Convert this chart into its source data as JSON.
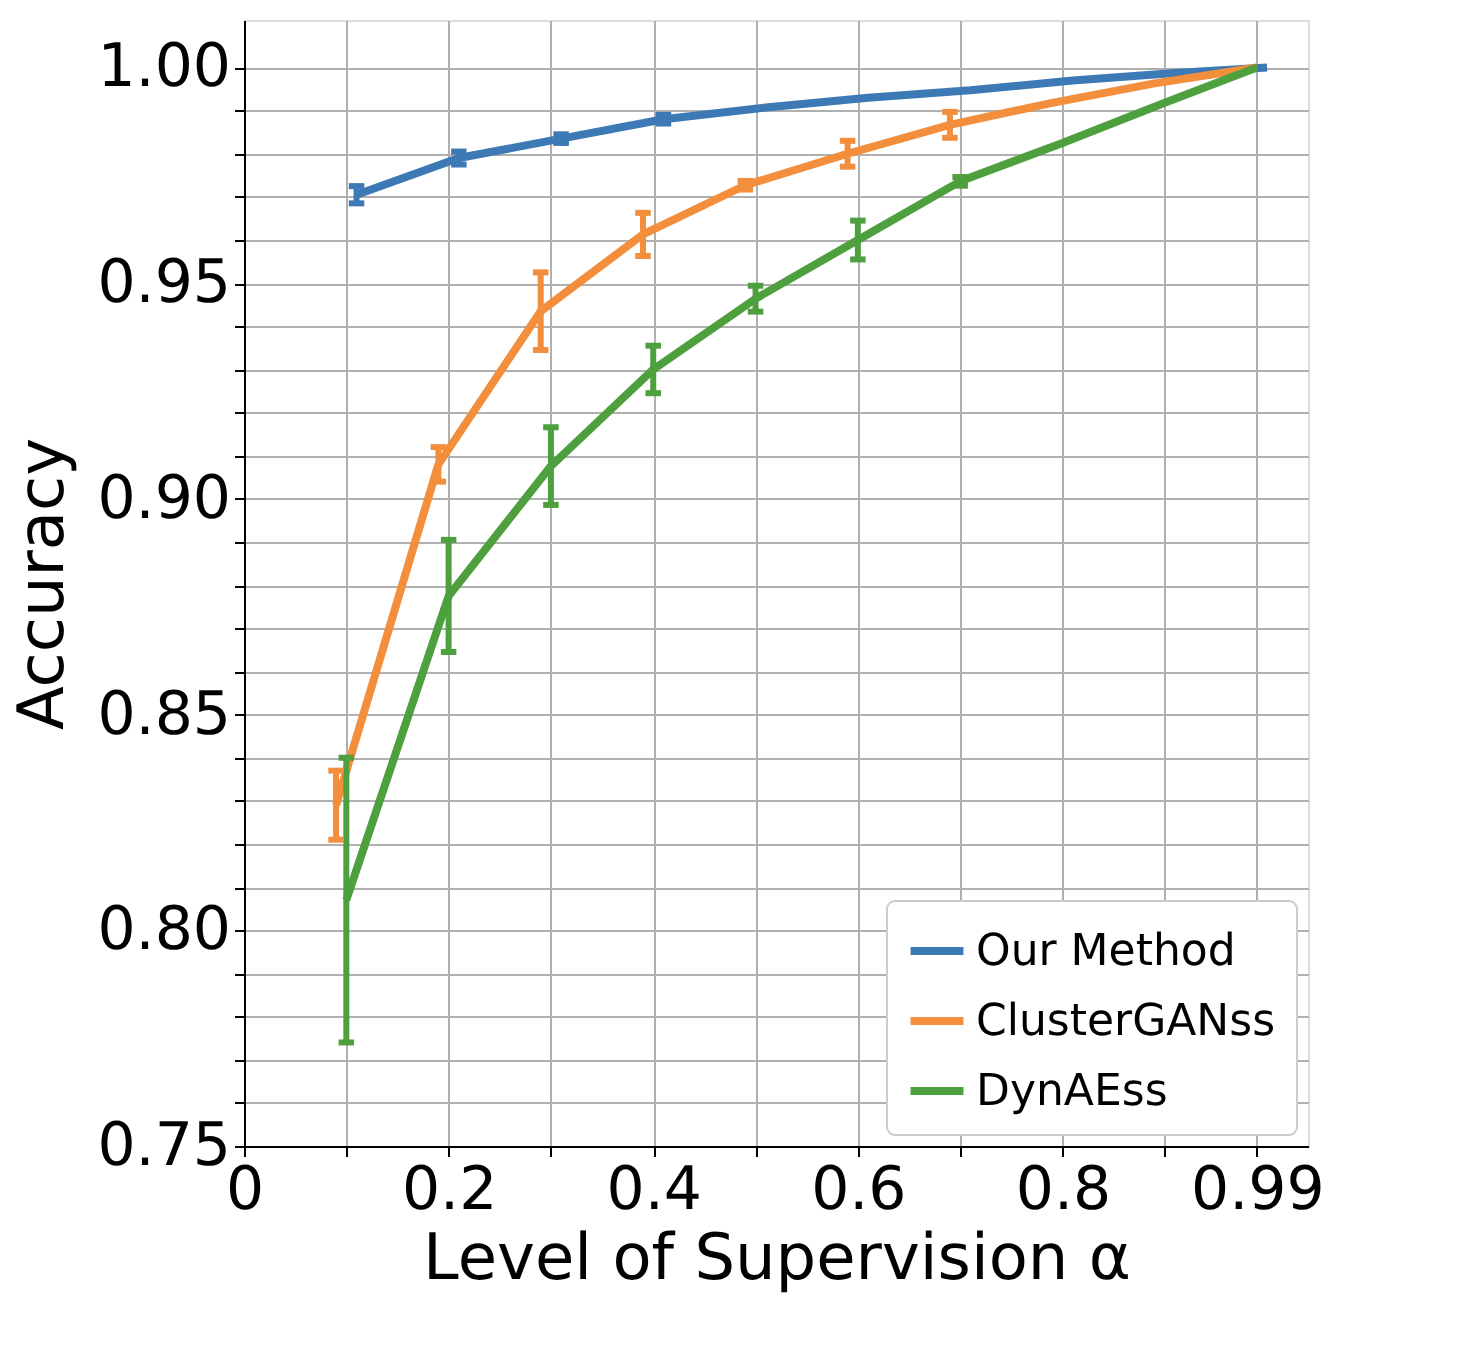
{
  "chart_data": {
    "type": "line",
    "xlabel": "Level of Supervision α",
    "ylabel": "Accuracy",
    "xlim": [
      0,
      1.04
    ],
    "ylim": [
      0.75,
      1.011
    ],
    "xticks": [
      0,
      {
        "value": 0.1,
        "label": null
      },
      0.2,
      {
        "value": 0.3,
        "label": null
      },
      0.4,
      {
        "value": 0.5,
        "label": null
      },
      0.6,
      {
        "value": 0.7,
        "label": null
      },
      0.8,
      {
        "value": 0.9,
        "label": null
      },
      0.99
    ],
    "yticks": [
      {
        "value": 0.75,
        "label": "0.75"
      },
      {
        "value": 0.76,
        "label": null
      },
      {
        "value": 0.77,
        "label": null
      },
      {
        "value": 0.78,
        "label": null
      },
      {
        "value": 0.79,
        "label": null
      },
      {
        "value": 0.8,
        "label": "0.80"
      },
      {
        "value": 0.81,
        "label": null
      },
      {
        "value": 0.82,
        "label": null
      },
      {
        "value": 0.83,
        "label": null
      },
      {
        "value": 0.84,
        "label": null
      },
      {
        "value": 0.85,
        "label": "0.85"
      },
      {
        "value": 0.86,
        "label": null
      },
      {
        "value": 0.87,
        "label": null
      },
      {
        "value": 0.88,
        "label": null
      },
      {
        "value": 0.89,
        "label": null
      },
      {
        "value": 0.9,
        "label": "0.90"
      },
      {
        "value": 0.91,
        "label": null
      },
      {
        "value": 0.92,
        "label": null
      },
      {
        "value": 0.93,
        "label": null
      },
      {
        "value": 0.94,
        "label": null
      },
      {
        "value": 0.95,
        "label": "0.95"
      },
      {
        "value": 0.96,
        "label": null
      },
      {
        "value": 0.97,
        "label": null
      },
      {
        "value": 0.98,
        "label": null
      },
      {
        "value": 0.99,
        "label": null
      },
      {
        "value": 1.0,
        "label": "1.00"
      }
    ],
    "grid": true,
    "legend": "bottom right",
    "marker": "none",
    "line_style": "solid",
    "series": [
      {
        "name": "Our Method",
        "color": "#3d7ab5",
        "x": [
          0.11,
          0.21,
          0.31,
          0.41,
          0.51,
          0.61,
          0.71,
          0.81,
          0.91,
          1.0
        ],
        "values": [
          0.9705,
          0.979,
          0.9835,
          0.988,
          0.9907,
          0.993,
          0.9947,
          0.997,
          0.9987,
          1.0
        ],
        "errors": [
          0.002,
          0.0015,
          0.001,
          0.001,
          null,
          null,
          null,
          null,
          null,
          null
        ]
      },
      {
        "name": "ClusterGANss",
        "color": "#f28e3c",
        "x": [
          0.09,
          0.19,
          0.29,
          0.39,
          0.49,
          0.59,
          0.69,
          0.79,
          0.89,
          0.99
        ],
        "values": [
          0.829,
          0.908,
          0.9435,
          0.9613,
          0.9727,
          0.98,
          0.9867,
          0.9918,
          0.9963,
          1.0
        ],
        "errors": [
          0.008,
          0.004,
          0.009,
          0.005,
          0.001,
          0.003,
          0.003,
          null,
          null,
          null
        ]
      },
      {
        "name": "DynAEss",
        "color": "#4e9f3d",
        "x": [
          0.1,
          0.2,
          0.3,
          0.4,
          0.5,
          0.6,
          0.7,
          0.8,
          0.9,
          0.99
        ],
        "values": [
          0.807,
          0.8775,
          0.9076,
          0.93,
          0.9464,
          0.96,
          0.9736,
          0.9825,
          0.9918,
          1.0
        ],
        "errors": [
          0.033,
          0.013,
          0.009,
          0.0055,
          0.003,
          0.0045,
          0.001,
          null,
          null,
          null
        ]
      }
    ]
  }
}
